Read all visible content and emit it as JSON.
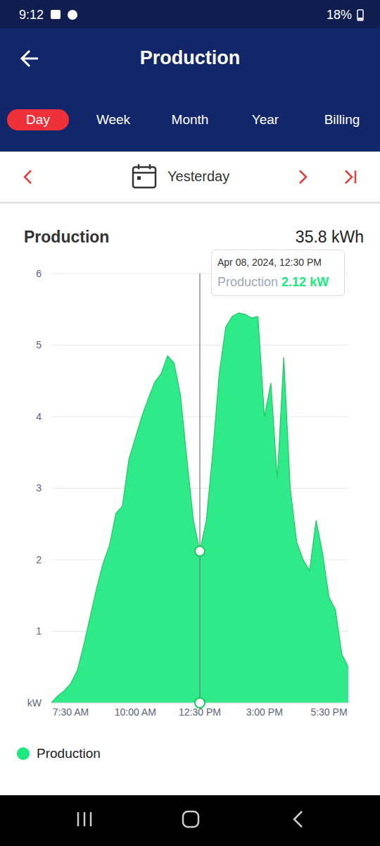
{
  "status_bar": {
    "time": "9:12",
    "battery": "18%"
  },
  "header": {
    "title": "Production"
  },
  "tabs": {
    "items": [
      "Day",
      "Week",
      "Month",
      "Year",
      "Billing"
    ],
    "active": "Day"
  },
  "date_nav": {
    "label": "Yesterday"
  },
  "chart_data": {
    "type": "area",
    "title": "Production",
    "total": "35.8 kWh",
    "categories": [
      null,
      null,
      null,
      "7:30 AM",
      null,
      null,
      null,
      null,
      null,
      null,
      null,
      null,
      null,
      "10:00 AM",
      null,
      null,
      null,
      null,
      null,
      null,
      null,
      null,
      null,
      "12:30 PM",
      null,
      null,
      null,
      null,
      null,
      null,
      null,
      null,
      null,
      "3:00 PM",
      null,
      null,
      null,
      null,
      null,
      null,
      null,
      null,
      null,
      "5:30 PM",
      null,
      null,
      null
    ],
    "series": [
      {
        "name": "Production",
        "color": "#1de87f",
        "values": [
          0.0,
          0.1,
          0.17,
          0.27,
          0.45,
          0.8,
          1.2,
          1.6,
          1.95,
          2.2,
          2.65,
          2.75,
          3.4,
          3.7,
          4.0,
          4.25,
          4.48,
          4.6,
          4.85,
          4.75,
          4.3,
          3.4,
          2.55,
          2.12,
          2.55,
          3.5,
          4.6,
          5.25,
          5.4,
          5.45,
          5.43,
          5.38,
          5.4,
          4.0,
          4.47,
          3.13,
          4.83,
          3.0,
          2.25,
          2.0,
          1.85,
          2.55,
          2.1,
          1.48,
          1.3,
          0.68,
          0.5
        ]
      }
    ],
    "ylim": [
      0,
      6
    ],
    "yticks": [
      {
        "value": 0,
        "label": "kW"
      },
      1,
      2,
      3,
      4,
      5,
      6
    ],
    "grid": true,
    "tooltip": {
      "x": "12:30 PM",
      "label": "Apr 08, 2024, 12:30 PM",
      "series": "Production",
      "value": 2.12,
      "unit": "kW"
    }
  }
}
